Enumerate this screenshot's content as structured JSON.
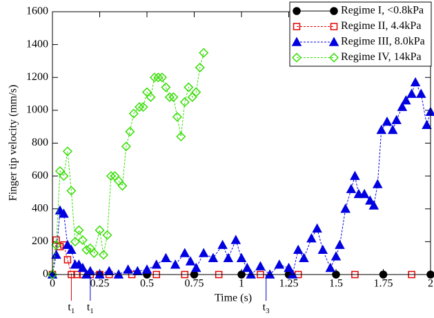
{
  "chart_data": {
    "type": "line",
    "xlabel": "Time (s)",
    "ylabel": "Finger tip velocity (mm/s)",
    "xlim": [
      0,
      2
    ],
    "ylim": [
      0,
      1600
    ],
    "xticks": [
      0,
      0.25,
      0.5,
      0.75,
      1,
      1.25,
      1.5,
      1.75,
      2
    ],
    "yticks": [
      0,
      200,
      400,
      600,
      800,
      1000,
      1200,
      1400,
      1600
    ],
    "legend": "upper right",
    "annotations": [
      {
        "label": "t",
        "sub": "1",
        "x": 0.1,
        "color": "#cc0000"
      },
      {
        "label": "t",
        "sub": "1",
        "x": 0.2,
        "color": "#0000cc"
      },
      {
        "label": "t",
        "sub": "3",
        "x": 1.13,
        "color": "#0000cc"
      }
    ],
    "series": [
      {
        "name": "Regime I, <0.8kPa",
        "color": "#000000",
        "marker": "circle",
        "filled": true,
        "dashed": false,
        "x": [
          0,
          0.25,
          0.5,
          0.75,
          1,
          1.25,
          1.5,
          1.75,
          2
        ],
        "values": [
          0,
          0,
          0,
          0,
          0,
          0,
          0,
          0,
          0
        ]
      },
      {
        "name": "Regime II, 4.4kPa",
        "color": "#e00000",
        "marker": "square",
        "filled": false,
        "dashed": true,
        "x": [
          0,
          0.02,
          0.04,
          0.06,
          0.08,
          0.1,
          0.13,
          0.16,
          0.2,
          0.25,
          0.3,
          0.42,
          0.55,
          0.7,
          0.88,
          1.1,
          1.3,
          1.6,
          1.9
        ],
        "values": [
          0,
          210,
          170,
          180,
          90,
          0,
          0,
          0,
          0,
          0,
          0,
          0,
          0,
          0,
          0,
          0,
          0,
          0,
          0
        ]
      },
      {
        "name": "Regime III, 8.0kPa",
        "color": "#0000e0",
        "marker": "triangle",
        "filled": true,
        "dashed": true,
        "x": [
          0,
          0.02,
          0.04,
          0.06,
          0.08,
          0.1,
          0.12,
          0.14,
          0.16,
          0.18,
          0.2,
          0.25,
          0.3,
          0.35,
          0.4,
          0.45,
          0.5,
          0.55,
          0.6,
          0.65,
          0.7,
          0.73,
          0.76,
          0.8,
          0.85,
          0.9,
          0.93,
          0.97,
          1.0,
          1.03,
          1.05,
          1.1,
          1.15,
          1.2,
          1.25,
          1.27,
          1.3,
          1.33,
          1.37,
          1.4,
          1.43,
          1.47,
          1.5,
          1.52,
          1.55,
          1.58,
          1.6,
          1.62,
          1.65,
          1.68,
          1.7,
          1.72,
          1.74,
          1.77,
          1.8,
          1.82,
          1.85,
          1.87,
          1.9,
          1.92,
          1.95,
          1.98,
          2.0
        ],
        "values": [
          0,
          120,
          390,
          370,
          180,
          150,
          60,
          60,
          40,
          0,
          20,
          0,
          20,
          0,
          30,
          20,
          30,
          60,
          100,
          60,
          130,
          80,
          40,
          130,
          100,
          180,
          100,
          210,
          100,
          40,
          0,
          50,
          0,
          60,
          40,
          0,
          150,
          100,
          220,
          280,
          150,
          40,
          110,
          180,
          400,
          520,
          600,
          490,
          490,
          450,
          420,
          550,
          880,
          930,
          880,
          940,
          1020,
          1060,
          1100,
          1170,
          1100,
          910,
          990
        ]
      },
      {
        "name": "Regime IV, 14kPa",
        "color": "#33dd00",
        "marker": "diamond",
        "filled": false,
        "dashed": true,
        "x": [
          0,
          0.02,
          0.04,
          0.06,
          0.08,
          0.1,
          0.12,
          0.14,
          0.16,
          0.18,
          0.2,
          0.22,
          0.25,
          0.27,
          0.29,
          0.31,
          0.33,
          0.35,
          0.37,
          0.39,
          0.41,
          0.43,
          0.46,
          0.48,
          0.5,
          0.52,
          0.54,
          0.56,
          0.58,
          0.6,
          0.62,
          0.64,
          0.66,
          0.68,
          0.7,
          0.72,
          0.74,
          0.76,
          0.78,
          0.8
        ],
        "values": [
          0,
          180,
          630,
          600,
          750,
          510,
          200,
          270,
          210,
          150,
          160,
          130,
          270,
          120,
          240,
          600,
          600,
          570,
          540,
          780,
          870,
          980,
          1020,
          1020,
          1110,
          1080,
          1200,
          1200,
          1200,
          1140,
          1080,
          1080,
          960,
          840,
          1050,
          1140,
          1080,
          1110,
          1260,
          1350
        ]
      }
    ]
  }
}
